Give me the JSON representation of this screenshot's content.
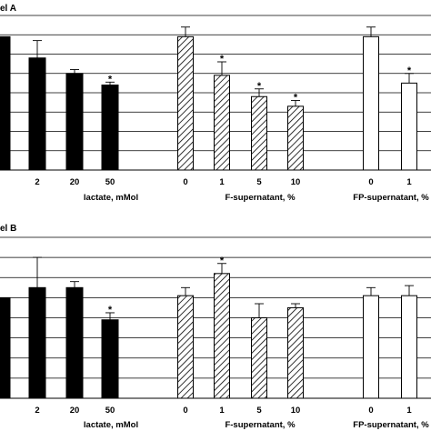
{
  "chart_data": [
    {
      "type": "bar",
      "title": "Panel A",
      "title_visible": "el A",
      "grid": true,
      "ylim": [
        0,
        8
      ],
      "groups": [
        {
          "label": "lactate, mMol",
          "pattern": "solid",
          "categories": [
            "",
            "2",
            "20",
            "50"
          ],
          "values": [
            6.9,
            5.8,
            5.0,
            4.4
          ],
          "errors": [
            0.0,
            0.9,
            0.2,
            0.15
          ],
          "significant": [
            false,
            false,
            false,
            true
          ]
        },
        {
          "label": "F-supernatant, %",
          "pattern": "hatched",
          "categories": [
            "0",
            "1",
            "5",
            "10"
          ],
          "values": [
            6.9,
            4.9,
            3.8,
            3.3
          ],
          "errors": [
            0.5,
            0.7,
            0.4,
            0.3
          ],
          "significant": [
            false,
            true,
            true,
            true
          ]
        },
        {
          "label": "FP-supernatant, %",
          "pattern": "open",
          "categories": [
            "0",
            "1"
          ],
          "values": [
            6.9,
            4.5
          ],
          "errors": [
            0.5,
            0.5
          ],
          "significant": [
            false,
            true
          ]
        }
      ]
    },
    {
      "type": "bar",
      "title": "Panel B",
      "title_visible": "el B",
      "grid": true,
      "ylim": [
        0,
        8
      ],
      "groups": [
        {
          "label": "lactate, mMol",
          "pattern": "solid",
          "categories": [
            "",
            "2",
            "20",
            "50"
          ],
          "values": [
            5.0,
            5.5,
            5.5,
            3.9
          ],
          "errors": [
            0.0,
            1.5,
            0.3,
            0.35
          ],
          "significant": [
            false,
            false,
            false,
            true
          ]
        },
        {
          "label": "F-supernatant, %",
          "pattern": "hatched",
          "categories": [
            "0",
            "1",
            "5",
            "10"
          ],
          "values": [
            5.1,
            6.2,
            4.0,
            4.5
          ],
          "errors": [
            0.4,
            0.5,
            0.7,
            0.2
          ],
          "significant": [
            false,
            true,
            false,
            false
          ]
        },
        {
          "label": "FP-supernatant, %",
          "pattern": "open",
          "categories": [
            "0",
            "1"
          ],
          "values": [
            5.1,
            5.1
          ],
          "errors": [
            0.4,
            0.5
          ],
          "significant": [
            false,
            false
          ]
        }
      ]
    }
  ]
}
